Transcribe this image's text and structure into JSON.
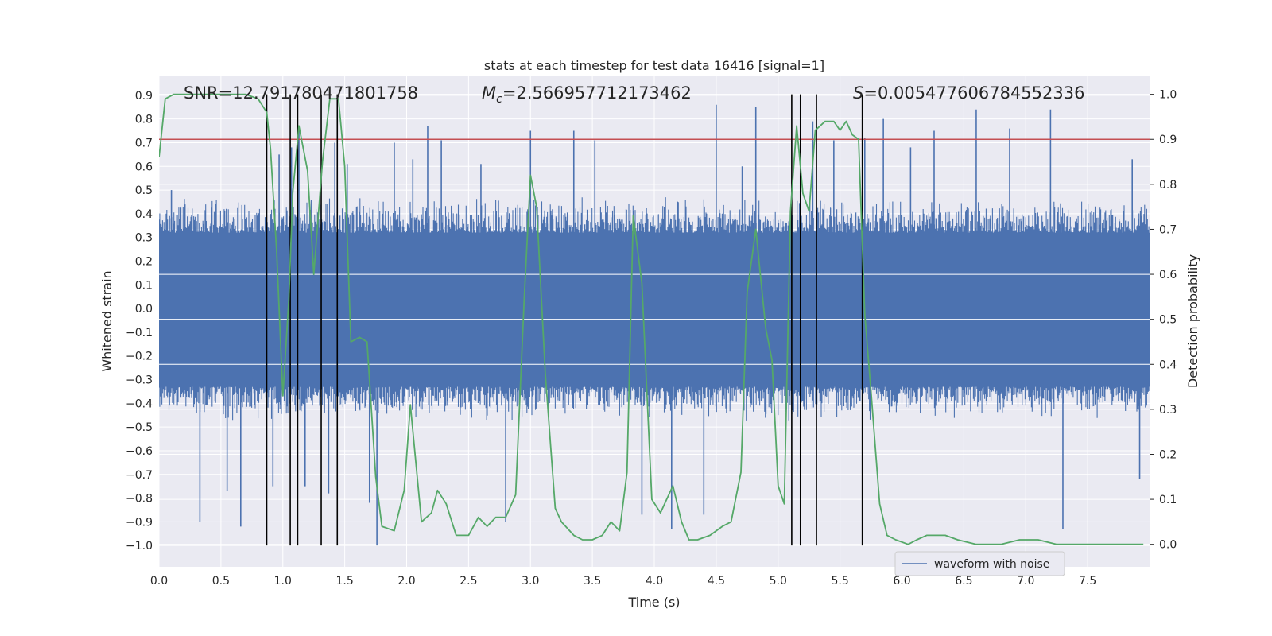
{
  "chart_data": {
    "type": "line",
    "title": "stats at each timestep for test data 16416 [signal=1]",
    "xlabel": "Time (s)",
    "ylabel_left": "Whitened strain",
    "ylabel_right": "Detection probability",
    "xlim": [
      0.0,
      8.0
    ],
    "ylim_left": [
      -1.09,
      0.98
    ],
    "ylim_right": [
      -0.05,
      1.04
    ],
    "x_ticks": [
      0.0,
      0.5,
      1.0,
      1.5,
      2.0,
      2.5,
      3.0,
      3.5,
      4.0,
      4.5,
      5.0,
      5.5,
      6.0,
      6.5,
      7.0,
      7.5
    ],
    "x_tick_labels": [
      "0.0",
      "0.5",
      "1.0",
      "1.5",
      "2.0",
      "2.5",
      "3.0",
      "3.5",
      "4.0",
      "4.5",
      "5.0",
      "5.5",
      "6.0",
      "6.5",
      "7.0",
      "7.5"
    ],
    "y_left_ticks": [
      0.9,
      0.8,
      0.7,
      0.6,
      0.5,
      0.4,
      0.3,
      0.2,
      0.1,
      0.0,
      -0.1,
      -0.2,
      -0.3,
      -0.4,
      -0.5,
      -0.6,
      -0.7,
      -0.8,
      -0.9,
      -1.0
    ],
    "y_left_tick_labels": [
      "0.9",
      "0.8",
      "0.7",
      "0.6",
      "0.5",
      "0.4",
      "0.3",
      "0.2",
      "0.1",
      "0.0",
      "−0.1",
      "−0.2",
      "−0.3",
      "−0.4",
      "−0.5",
      "−0.6",
      "−0.7",
      "−0.8",
      "−0.9",
      "−1.0"
    ],
    "y_right_ticks": [
      1.0,
      0.9,
      0.8,
      0.7,
      0.6,
      0.5,
      0.4,
      0.3,
      0.2,
      0.1,
      0.0
    ],
    "y_right_tick_labels": [
      "1.0",
      "0.9",
      "0.8",
      "0.7",
      "0.6",
      "0.5",
      "0.4",
      "0.3",
      "0.2",
      "0.1",
      "0.0"
    ],
    "threshold": {
      "axis": "right",
      "value": 0.9,
      "color": "#c44e52"
    },
    "waveform": {
      "name": "waveform with noise",
      "color": "#4c72b0",
      "core_range": [
        -0.33,
        0.32
      ],
      "envelope_range": [
        -0.45,
        0.45
      ],
      "spikes": [
        [
          0.1,
          0.5
        ],
        [
          0.33,
          -0.9
        ],
        [
          0.55,
          -0.77
        ],
        [
          0.66,
          -0.92
        ],
        [
          0.92,
          -0.75
        ],
        [
          0.97,
          0.65
        ],
        [
          1.07,
          0.68
        ],
        [
          1.13,
          0.76
        ],
        [
          1.18,
          -0.75
        ],
        [
          1.37,
          -0.78
        ],
        [
          1.42,
          0.7
        ],
        [
          1.52,
          0.61
        ],
        [
          1.7,
          -0.82
        ],
        [
          1.76,
          -1.0
        ],
        [
          1.9,
          0.7
        ],
        [
          2.05,
          0.63
        ],
        [
          2.17,
          0.77
        ],
        [
          2.28,
          0.71
        ],
        [
          2.6,
          0.61
        ],
        [
          2.8,
          -0.9
        ],
        [
          3.0,
          0.75
        ],
        [
          3.35,
          0.75
        ],
        [
          3.52,
          0.71
        ],
        [
          3.8,
          0.37
        ],
        [
          3.9,
          -0.87
        ],
        [
          4.14,
          -0.93
        ],
        [
          4.4,
          -0.87
        ],
        [
          4.5,
          0.86
        ],
        [
          4.71,
          0.6
        ],
        [
          4.82,
          0.85
        ],
        [
          5.28,
          0.79
        ],
        [
          5.45,
          0.71
        ],
        [
          5.7,
          0.72
        ],
        [
          5.85,
          0.8
        ],
        [
          6.07,
          0.68
        ],
        [
          6.26,
          0.75
        ],
        [
          6.6,
          0.84
        ],
        [
          6.87,
          0.76
        ],
        [
          7.2,
          0.84
        ],
        [
          7.3,
          -0.93
        ],
        [
          7.86,
          0.63
        ],
        [
          7.92,
          -0.72
        ]
      ]
    },
    "detection_probability": {
      "color": "#55a868",
      "x": [
        0.0,
        0.05,
        0.12,
        0.2,
        0.3,
        0.5,
        0.7,
        0.8,
        0.87,
        0.9,
        0.95,
        1.0,
        1.05,
        1.08,
        1.13,
        1.2,
        1.25,
        1.32,
        1.38,
        1.45,
        1.5,
        1.55,
        1.62,
        1.68,
        1.75,
        1.8,
        1.9,
        1.98,
        2.03,
        2.12,
        2.2,
        2.25,
        2.32,
        2.4,
        2.5,
        2.58,
        2.65,
        2.72,
        2.8,
        2.88,
        2.95,
        3.0,
        3.05,
        3.12,
        3.2,
        3.25,
        3.35,
        3.42,
        3.5,
        3.58,
        3.65,
        3.72,
        3.78,
        3.83,
        3.9,
        3.98,
        4.05,
        4.15,
        4.22,
        4.28,
        4.35,
        4.45,
        4.55,
        4.62,
        4.7,
        4.75,
        4.82,
        4.9,
        4.95,
        5.0,
        5.05,
        5.1,
        5.15,
        5.2,
        5.25,
        5.3,
        5.38,
        5.45,
        5.5,
        5.55,
        5.6,
        5.65,
        5.7,
        5.75,
        5.82,
        5.88,
        5.95,
        6.05,
        6.12,
        6.2,
        6.28,
        6.35,
        6.45,
        6.6,
        6.8,
        6.95,
        7.1,
        7.25,
        7.5,
        7.8,
        7.95
      ],
      "y": [
        0.86,
        0.99,
        1.0,
        1.0,
        1.0,
        1.0,
        1.0,
        0.99,
        0.96,
        0.88,
        0.65,
        0.33,
        0.55,
        0.78,
        0.93,
        0.83,
        0.6,
        0.85,
        0.99,
        0.99,
        0.84,
        0.45,
        0.46,
        0.45,
        0.15,
        0.04,
        0.03,
        0.12,
        0.31,
        0.05,
        0.07,
        0.12,
        0.09,
        0.02,
        0.02,
        0.06,
        0.04,
        0.06,
        0.06,
        0.11,
        0.55,
        0.82,
        0.75,
        0.38,
        0.08,
        0.05,
        0.02,
        0.01,
        0.01,
        0.02,
        0.05,
        0.03,
        0.16,
        0.73,
        0.58,
        0.1,
        0.07,
        0.13,
        0.05,
        0.01,
        0.01,
        0.02,
        0.04,
        0.05,
        0.16,
        0.56,
        0.7,
        0.48,
        0.41,
        0.13,
        0.09,
        0.74,
        0.93,
        0.78,
        0.74,
        0.92,
        0.94,
        0.94,
        0.92,
        0.94,
        0.91,
        0.9,
        0.51,
        0.34,
        0.09,
        0.02,
        0.01,
        0.0,
        0.01,
        0.02,
        0.02,
        0.02,
        0.01,
        0.0,
        0.0,
        0.01,
        0.01,
        0.0,
        0.0,
        0.0,
        0.0
      ]
    },
    "vertical_markers": [
      0.87,
      1.06,
      1.12,
      1.31,
      1.44,
      5.11,
      5.18,
      5.31,
      5.68
    ],
    "annotations": {
      "snr": "SNR=12.791780471801758",
      "mc_symbol": "M",
      "mc_subscript": "c",
      "mc_value": "=2.566957712173462",
      "s_symbol": "S",
      "s_value": "=0.005477606784552336"
    },
    "legend": {
      "label": "waveform with noise",
      "position": "lower-right"
    }
  },
  "colors": {
    "plot_background": "#eaeaf2",
    "grid": "#ffffff",
    "waveform": "#4c72b0",
    "probability": "#55a868",
    "threshold": "#c44e52",
    "markers": "#000000"
  }
}
